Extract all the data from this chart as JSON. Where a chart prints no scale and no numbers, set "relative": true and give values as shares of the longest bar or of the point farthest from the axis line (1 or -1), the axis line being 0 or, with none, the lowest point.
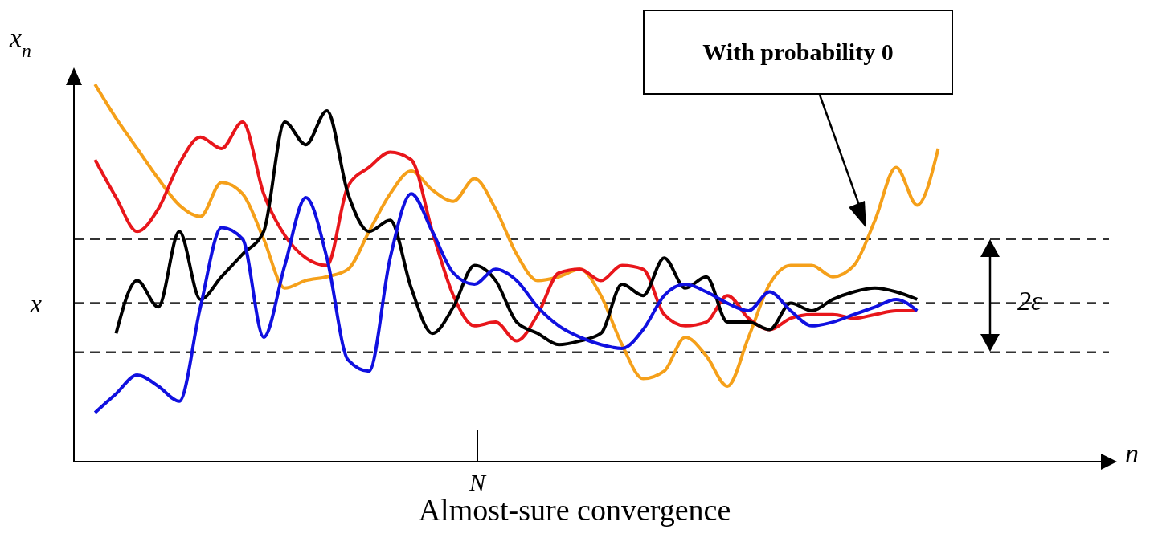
{
  "chart_data": {
    "type": "line",
    "title": "Almost-sure convergence",
    "ylabel": "x$_{n}$",
    "relative": true,
    "grid": false,
    "legend": false,
    "marker": "none",
    "line_style": "solid",
    "categories": [
      null,
      null,
      null,
      null,
      null,
      null,
      null,
      null,
      null,
      null,
      null,
      null,
      null,
      null,
      null,
      null,
      null,
      null,
      null,
      null,
      null,
      null,
      null,
      null,
      null,
      null,
      null,
      null,
      null,
      null,
      null,
      null,
      null,
      null,
      null,
      null,
      null,
      null,
      null,
      null,
      null
    ],
    "series": [
      {
        "color": "#f5a01a",
        "values": [
          1.0,
          0.91,
          0.83,
          0.75,
          0.68,
          0.65,
          0.74,
          0.71,
          0.59,
          0.46,
          0.48,
          0.49,
          0.51,
          0.61,
          0.71,
          0.77,
          0.72,
          0.69,
          0.75,
          0.67,
          0.55,
          0.48,
          0.49,
          0.51,
          0.44,
          0.31,
          0.22,
          0.24,
          0.33,
          0.28,
          0.2,
          0.33,
          0.47,
          0.52,
          0.52,
          0.49,
          0.52,
          0.64,
          0.78,
          0.68,
          0.83
        ]
      },
      {
        "color": "#e8161b",
        "values": [
          0.8,
          0.7,
          0.61,
          0.67,
          0.79,
          0.86,
          0.83,
          0.9,
          0.71,
          0.6,
          0.54,
          0.52,
          0.73,
          0.78,
          0.82,
          0.8,
          0.61,
          0.44,
          0.36,
          0.37,
          0.32,
          0.39,
          0.5,
          0.51,
          0.48,
          0.52,
          0.51,
          0.39,
          0.36,
          0.37,
          0.44,
          0.38,
          0.35,
          0.38,
          0.39,
          0.39,
          0.38,
          0.39,
          0.4,
          0.4,
          null
        ]
      },
      {
        "color": "#000000",
        "values": [
          null,
          0.34,
          0.48,
          0.41,
          0.61,
          0.43,
          0.49,
          0.55,
          0.61,
          0.9,
          0.84,
          0.93,
          0.71,
          0.61,
          0.64,
          0.46,
          0.34,
          0.41,
          0.52,
          0.48,
          0.37,
          0.34,
          0.31,
          0.32,
          0.34,
          0.47,
          0.44,
          0.54,
          0.46,
          0.49,
          0.37,
          0.37,
          0.35,
          0.42,
          0.4,
          0.43,
          0.45,
          0.46,
          0.45,
          0.43,
          null
        ]
      },
      {
        "color": "#1010e0",
        "values": [
          0.13,
          0.18,
          0.23,
          0.2,
          0.16,
          0.41,
          0.62,
          0.59,
          0.33,
          0.52,
          0.7,
          0.54,
          0.27,
          0.24,
          0.54,
          0.71,
          0.61,
          0.5,
          0.47,
          0.51,
          0.48,
          0.41,
          0.36,
          0.33,
          0.31,
          0.3,
          0.35,
          0.44,
          0.47,
          0.45,
          0.42,
          0.4,
          0.45,
          0.4,
          0.36,
          0.37,
          0.39,
          0.41,
          0.43,
          0.4,
          null
        ]
      }
    ],
    "ref_lines": [
      {
        "axis": "y",
        "value": 0.59,
        "line_style": "dashed",
        "color": "#333333"
      },
      {
        "axis": "y",
        "value": 0.42,
        "label": "x",
        "line_style": "dashed",
        "color": "#333333"
      },
      {
        "axis": "y",
        "value": 0.29,
        "line_style": "dashed",
        "color": "#333333"
      }
    ],
    "annotations": [
      "With probability 0",
      "2ε",
      "N",
      "n"
    ]
  }
}
